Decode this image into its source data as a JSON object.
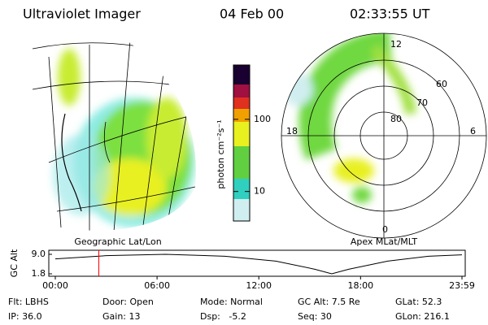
{
  "header": {
    "title": "Ultraviolet Imager",
    "date": "04 Feb 00",
    "time": "02:33:55 UT"
  },
  "left_panel": {
    "caption": "Geographic Lat/Lon"
  },
  "colorbar": {
    "label": "photon cm⁻²s⁻¹",
    "scale": "log",
    "lim": [
      3.9,
      566
    ],
    "ticks": [
      10,
      100
    ]
  },
  "right_panel": {
    "caption": "Apex MLat/MLT",
    "mlt_labels": [
      "12",
      "6",
      "0",
      "18"
    ],
    "lat_labels": [
      "80",
      "70",
      "60"
    ]
  },
  "chart_data": {
    "type": "line",
    "ylabel": "GC Alt",
    "color": "#000000",
    "x": [
      0,
      3,
      6.5,
      10,
      13,
      15.3,
      16.3,
      17.3,
      19.6,
      22,
      23.98
    ],
    "values": [
      7.3,
      8.5,
      9.0,
      8.3,
      6.5,
      3.5,
      1.8,
      3.5,
      6.5,
      8.3,
      8.8
    ],
    "marker_x": 2.5653,
    "marker_color": "#ff0000",
    "xlim": [
      0,
      23.98
    ],
    "ylim": [
      1.8,
      9.0
    ],
    "xticks": [
      {
        "value": 0,
        "label": "00:00"
      },
      {
        "value": 6,
        "label": "06:00"
      },
      {
        "value": 12,
        "label": "12:00"
      },
      {
        "value": 18,
        "label": "18:00"
      },
      {
        "value": 23.98,
        "label": "23:59"
      }
    ],
    "yticks": [
      1.8,
      {
        "value": 9.0,
        "label": "9.0"
      }
    ]
  },
  "footer": {
    "rows": [
      [
        "Flt: LBHS",
        "Door: Open",
        "Mode: Normal",
        "GC Alt: 7.5 Re",
        "GLat: 52.3"
      ],
      [
        "IP: 36.0",
        "Gain: 13",
        "Dsp:   -5.2",
        "Seq: 30",
        "GLon: 216.1"
      ]
    ]
  }
}
